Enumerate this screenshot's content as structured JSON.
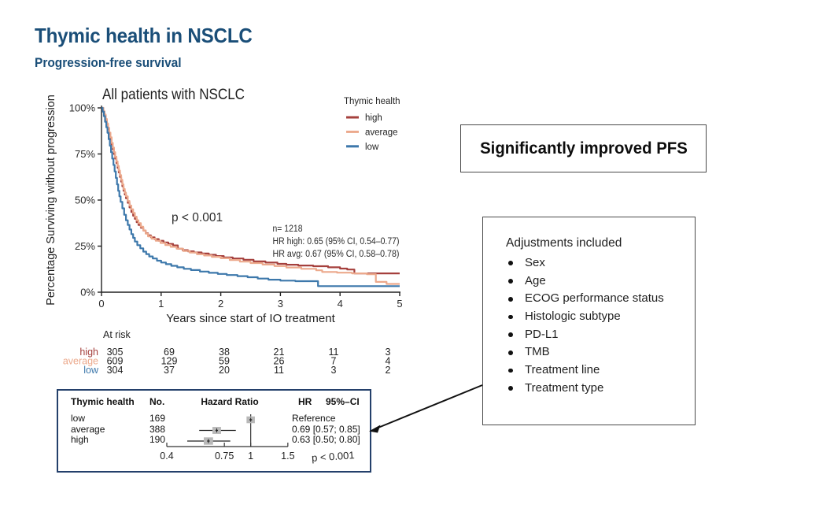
{
  "header": {
    "title": "Thymic health in NSCLC",
    "subtitle": "Progression-free survival"
  },
  "chart_data": [
    {
      "type": "line",
      "variant": "kaplan-meier-step",
      "title": "All patients with NSCLC",
      "xlabel": "Years since start of IO treatment",
      "ylabel": "Percentage Surviving without progression",
      "xlim": [
        0,
        5
      ],
      "ylim": [
        0,
        100
      ],
      "xticks": [
        0,
        1,
        2,
        3,
        4,
        5
      ],
      "yticks": [
        0,
        25,
        50,
        75,
        100
      ],
      "ytick_labels": [
        "0%",
        "25%",
        "50%",
        "75%",
        "100%"
      ],
      "grid": false,
      "legend": {
        "title": "Thymic health",
        "position": "top-right",
        "entries": [
          "high",
          "average",
          "low"
        ]
      },
      "annotations": {
        "p_value": "p < 0.001",
        "n": "n= 1218",
        "hr_high": "HR high: 0.65 (95% CI, 0.54–0.77)",
        "hr_avg": "HR avg: 0.67 (95% CI, 0.58–0.78)"
      },
      "series": [
        {
          "name": "high",
          "color": "#a5403d",
          "points": [
            [
              0,
              100
            ],
            [
              0.03,
              98
            ],
            [
              0.05,
              96
            ],
            [
              0.07,
              93.5
            ],
            [
              0.09,
              91
            ],
            [
              0.11,
              88.5
            ],
            [
              0.13,
              86
            ],
            [
              0.15,
              83
            ],
            [
              0.17,
              80
            ],
            [
              0.19,
              77.5
            ],
            [
              0.21,
              75
            ],
            [
              0.23,
              72.5
            ],
            [
              0.25,
              70
            ],
            [
              0.27,
              67.5
            ],
            [
              0.29,
              65
            ],
            [
              0.31,
              62.5
            ],
            [
              0.33,
              60
            ],
            [
              0.35,
              57.5
            ],
            [
              0.37,
              55
            ],
            [
              0.39,
              53
            ],
            [
              0.41,
              51
            ],
            [
              0.44,
              48.5
            ],
            [
              0.47,
              46
            ],
            [
              0.5,
              43.5
            ],
            [
              0.53,
              41.5
            ],
            [
              0.56,
              39.8
            ],
            [
              0.59,
              38
            ],
            [
              0.62,
              36.5
            ],
            [
              0.66,
              35
            ],
            [
              0.7,
              33.5
            ],
            [
              0.74,
              32
            ],
            [
              0.78,
              30.8
            ],
            [
              0.83,
              29.8
            ],
            [
              0.89,
              28.8
            ],
            [
              0.96,
              27.9
            ],
            [
              1.04,
              27.0
            ],
            [
              1.12,
              26.2
            ],
            [
              1.2,
              25.4
            ],
            [
              1.28,
              23.6
            ],
            [
              1.36,
              22.8
            ],
            [
              1.45,
              22.2
            ],
            [
              1.55,
              21.6
            ],
            [
              1.68,
              21.0
            ],
            [
              1.8,
              20.3
            ],
            [
              1.92,
              19.6
            ],
            [
              2.05,
              18.9
            ],
            [
              2.2,
              18.3
            ],
            [
              2.38,
              17.6
            ],
            [
              2.55,
              16.7
            ],
            [
              2.75,
              16.1
            ],
            [
              2.95,
              15.4
            ],
            [
              3.1,
              14.9
            ],
            [
              3.3,
              14.5
            ],
            [
              3.55,
              14.1
            ],
            [
              3.8,
              13.5
            ],
            [
              4.0,
              12.8
            ],
            [
              4.12,
              12.3
            ],
            [
              4.24,
              10.2
            ],
            [
              5.0,
              10.2
            ]
          ]
        },
        {
          "name": "average",
          "color": "#eca98c",
          "points": [
            [
              0,
              100
            ],
            [
              0.03,
              98.2
            ],
            [
              0.05,
              96.4
            ],
            [
              0.07,
              94
            ],
            [
              0.09,
              91.6
            ],
            [
              0.11,
              89.2
            ],
            [
              0.13,
              86.6
            ],
            [
              0.15,
              84
            ],
            [
              0.17,
              81
            ],
            [
              0.19,
              78.5
            ],
            [
              0.21,
              76
            ],
            [
              0.23,
              73.5
            ],
            [
              0.25,
              71
            ],
            [
              0.27,
              68.5
            ],
            [
              0.29,
              66
            ],
            [
              0.31,
              63.5
            ],
            [
              0.33,
              61
            ],
            [
              0.35,
              58.5
            ],
            [
              0.37,
              56
            ],
            [
              0.39,
              54
            ],
            [
              0.41,
              52
            ],
            [
              0.44,
              49.5
            ],
            [
              0.47,
              47
            ],
            [
              0.5,
              45
            ],
            [
              0.53,
              43
            ],
            [
              0.56,
              41
            ],
            [
              0.59,
              39
            ],
            [
              0.62,
              37.5
            ],
            [
              0.66,
              35.5
            ],
            [
              0.7,
              33.5
            ],
            [
              0.74,
              31.8
            ],
            [
              0.78,
              30.3
            ],
            [
              0.84,
              29
            ],
            [
              0.91,
              27.9
            ],
            [
              0.99,
              26.7
            ],
            [
              1.07,
              25.6
            ],
            [
              1.16,
              24.6
            ],
            [
              1.26,
              23.6
            ],
            [
              1.37,
              22.4
            ],
            [
              1.48,
              21.5
            ],
            [
              1.6,
              20.6
            ],
            [
              1.72,
              19.9
            ],
            [
              1.85,
              19.2
            ],
            [
              2.0,
              18.4
            ],
            [
              2.15,
              17.5
            ],
            [
              2.32,
              16.6
            ],
            [
              2.5,
              15.8
            ],
            [
              2.7,
              15.0
            ],
            [
              2.9,
              14.2
            ],
            [
              3.1,
              13.4
            ],
            [
              3.35,
              12.7
            ],
            [
              3.6,
              11.9
            ],
            [
              3.7,
              11.0
            ],
            [
              3.95,
              10.6
            ],
            [
              4.2,
              10.2
            ],
            [
              4.45,
              9.8
            ],
            [
              4.6,
              5.6
            ],
            [
              4.78,
              4.5
            ],
            [
              5.0,
              4.5
            ]
          ]
        },
        {
          "name": "low",
          "color": "#3d78ab",
          "points": [
            [
              0,
              100
            ],
            [
              0.02,
              98
            ],
            [
              0.04,
              95.5
            ],
            [
              0.06,
              92.5
            ],
            [
              0.08,
              89.5
            ],
            [
              0.1,
              86.5
            ],
            [
              0.12,
              83
            ],
            [
              0.14,
              79.5
            ],
            [
              0.16,
              76
            ],
            [
              0.18,
              72.5
            ],
            [
              0.2,
              69
            ],
            [
              0.22,
              65.5
            ],
            [
              0.24,
              62
            ],
            [
              0.26,
              58.5
            ],
            [
              0.28,
              55
            ],
            [
              0.3,
              52
            ],
            [
              0.32,
              49
            ],
            [
              0.35,
              45.5
            ],
            [
              0.38,
              42
            ],
            [
              0.41,
              39
            ],
            [
              0.44,
              36.5
            ],
            [
              0.47,
              34
            ],
            [
              0.5,
              31.5
            ],
            [
              0.53,
              29.5
            ],
            [
              0.56,
              27.5
            ],
            [
              0.6,
              25.5
            ],
            [
              0.65,
              23.8
            ],
            [
              0.7,
              22
            ],
            [
              0.75,
              20.7
            ],
            [
              0.8,
              19.4
            ],
            [
              0.86,
              18.3
            ],
            [
              0.93,
              17.1
            ],
            [
              1.0,
              16.1
            ],
            [
              1.08,
              15.2
            ],
            [
              1.17,
              14.3
            ],
            [
              1.27,
              13.5
            ],
            [
              1.38,
              12.7
            ],
            [
              1.5,
              12.0
            ],
            [
              1.65,
              11.2
            ],
            [
              1.8,
              10.5
            ],
            [
              1.95,
              9.9
            ],
            [
              2.1,
              9.3
            ],
            [
              2.28,
              8.7
            ],
            [
              2.45,
              8.1
            ],
            [
              2.62,
              7.4
            ],
            [
              2.8,
              6.8
            ],
            [
              3.0,
              6.3
            ],
            [
              3.25,
              6.0
            ],
            [
              3.63,
              3.3
            ],
            [
              5.0,
              3.3
            ]
          ]
        }
      ],
      "at_risk": {
        "label": "At risk",
        "times": [
          0,
          1,
          2,
          3,
          4,
          5
        ],
        "rows": [
          {
            "name": "high",
            "color": "#a5403d",
            "values": [
              "305",
              "69",
              "38",
              "21",
              "11",
              "3"
            ]
          },
          {
            "name": "average",
            "color": "#eca98c",
            "values": [
              "609",
              "129",
              "59",
              "26",
              "7",
              "4"
            ]
          },
          {
            "name": "low",
            "color": "#3d78ab",
            "values": [
              "304",
              "37",
              "20",
              "11",
              "3",
              "2"
            ]
          }
        ]
      }
    },
    {
      "type": "scatter",
      "variant": "forest-plot",
      "columns": [
        "Thymic health",
        "No.",
        "Hazard Ratio",
        "HR",
        "95%–CI"
      ],
      "rows": [
        {
          "group": "low",
          "n": "169",
          "hr": 1.0,
          "ci_low": null,
          "ci_high": null,
          "ci_text": "Reference",
          "reference": true
        },
        {
          "group": "average",
          "n": "388",
          "hr": 0.69,
          "ci_low": 0.57,
          "ci_high": 0.85,
          "ci_text": "0.69 [0.57; 0.85]",
          "reference": false
        },
        {
          "group": "high",
          "n": "190",
          "hr": 0.63,
          "ci_low": 0.5,
          "ci_high": 0.8,
          "ci_text": "0.63 [0.50; 0.80]",
          "reference": false
        }
      ],
      "x_scale": "log",
      "xticks": [
        "0.4",
        "0.75",
        "1",
        "1.5"
      ],
      "p_label": "p < 0.001",
      "marker_color": "#b8b8b8"
    }
  ],
  "callouts": {
    "conclusion": "Significantly improved PFS",
    "adjustments_title": "Adjustments included",
    "adjustments": [
      "Sex",
      "Age",
      "ECOG performance status",
      "Histologic subtype",
      "PD-L1",
      "TMB",
      "Treatment line",
      "Treatment type"
    ]
  },
  "colors": {
    "accent_navy": "#1a4e78",
    "series_high": "#a5403d",
    "series_average": "#eca98c",
    "series_low": "#3d78ab",
    "forest_border": "#24406b",
    "forest_marker": "#b8b8b8",
    "arrow": "#111111"
  }
}
